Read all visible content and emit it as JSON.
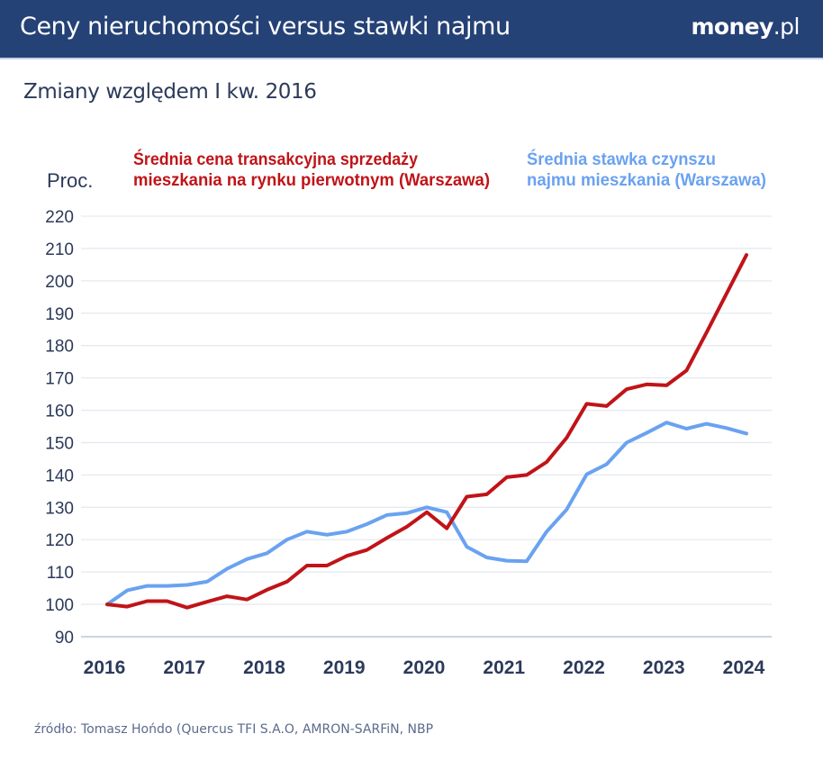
{
  "header": {
    "title": "Ceny nieruchomości versus stawki najmu",
    "logo_main": "money",
    "logo_tld": ".pl"
  },
  "subtitle": "Zmiany względem I kw. 2016",
  "source": "źródło: Tomasz Hońdo (Quercus TFI S.A.O, AMRON-SARFiN, NBP",
  "colors": {
    "header_bg": "#254276",
    "red_series": "#c01418",
    "blue_series": "#6aa2f0",
    "axis_text": "#2b3a5a",
    "grid": "#e6e9f1"
  },
  "chart_data": {
    "type": "line",
    "title": "Ceny nieruchomości versus stawki najmu",
    "subtitle": "Zmiany względem I kw. 2016",
    "ylabel": "Proc.",
    "xlabel": "",
    "ylim": [
      90,
      220
    ],
    "yticks": [
      "220",
      "210",
      "200",
      "190",
      "180",
      "170",
      "160",
      "150",
      "140",
      "130",
      "120",
      "110",
      "100",
      "90"
    ],
    "ytick_values": [
      220,
      210,
      200,
      190,
      180,
      170,
      160,
      150,
      140,
      130,
      120,
      110,
      100,
      90
    ],
    "xticks": [
      "2016",
      "2017",
      "2018",
      "2019",
      "2020",
      "2021",
      "2022",
      "2023",
      "2024"
    ],
    "x_frequency": "quarterly",
    "x_start": "2016 Q1",
    "x_end": "2024 Q1",
    "grid": true,
    "series": [
      {
        "name": "Średnia cena transakcyjna sprzedaży mieszkania na rynku pierwotnym (Warszawa)",
        "legend_lines": [
          "Średnia cena transakcyjna sprzedaży",
          "mieszkania na rynku pierwotnym (Warszawa)"
        ],
        "color": "#c01418",
        "values": [
          100,
          99.3,
          101,
          101,
          99,
          100.8,
          102.5,
          101.5,
          104.5,
          107,
          112,
          112,
          115,
          116.8,
          120.5,
          124,
          128.5,
          123.5,
          133.3,
          134,
          139.3,
          140,
          144,
          151.5,
          162,
          161.3,
          166.5,
          168,
          167.7,
          172.3,
          184,
          196,
          208
        ]
      },
      {
        "name": "Średnia stawka czynszu najmu mieszkania (Warszawa)",
        "legend_lines": [
          "Średnia stawka czynszu",
          "najmu mieszkania (Warszawa)"
        ],
        "color": "#6aa2f0",
        "values": [
          100,
          104.3,
          105.7,
          105.7,
          106,
          107,
          111,
          114,
          115.8,
          120,
          122.5,
          121.5,
          122.5,
          124.8,
          127.6,
          128.2,
          130,
          128.5,
          117.8,
          114.5,
          113.5,
          113.3,
          122.5,
          129.3,
          140.2,
          143.3,
          150,
          153,
          156.2,
          154.3,
          155.8,
          154.5,
          152.8
        ]
      }
    ]
  }
}
